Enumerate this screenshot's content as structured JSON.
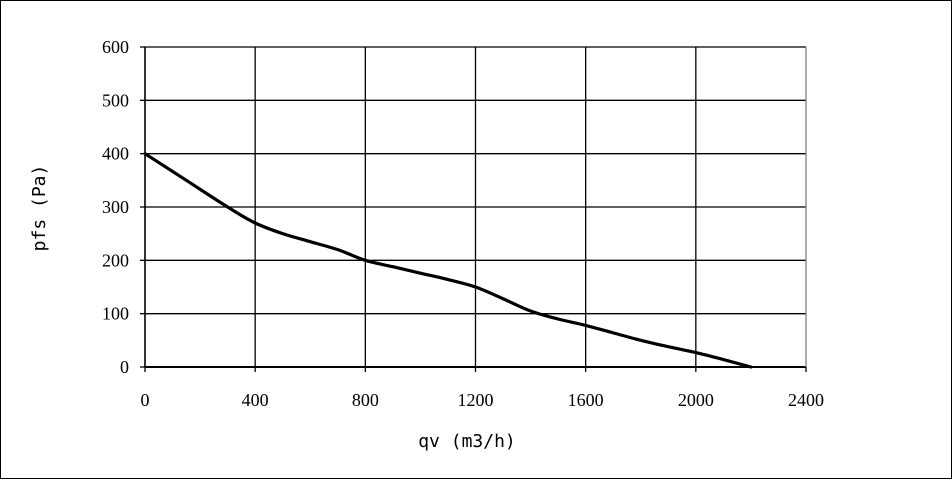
{
  "chart_data": {
    "type": "line",
    "xlabel": "qv (m3/h)",
    "ylabel": "pfs (Pa)",
    "xlim": [
      0,
      2400
    ],
    "ylim": [
      0,
      600
    ],
    "x_ticks": [
      "0",
      "400",
      "800",
      "1200",
      "1600",
      "2000",
      "2400"
    ],
    "y_ticks": [
      "0",
      "100",
      "200",
      "300",
      "400",
      "500",
      "600"
    ],
    "grid": true,
    "series": [
      {
        "x": [
          0,
          150,
          300,
          400,
          500,
          600,
          700,
          800,
          900,
          1000,
          1100,
          1200,
          1300,
          1400,
          1500,
          1600,
          1700,
          1800,
          1900,
          2000,
          2100,
          2200
        ],
        "y": [
          400,
          350,
          300,
          270,
          250,
          235,
          220,
          200,
          188,
          176,
          164,
          150,
          128,
          105,
          90,
          78,
          64,
          50,
          38,
          27,
          14,
          0
        ]
      }
    ],
    "colors": {
      "line": "#000000",
      "grid": "#000000",
      "frame_right": "#808080"
    }
  }
}
